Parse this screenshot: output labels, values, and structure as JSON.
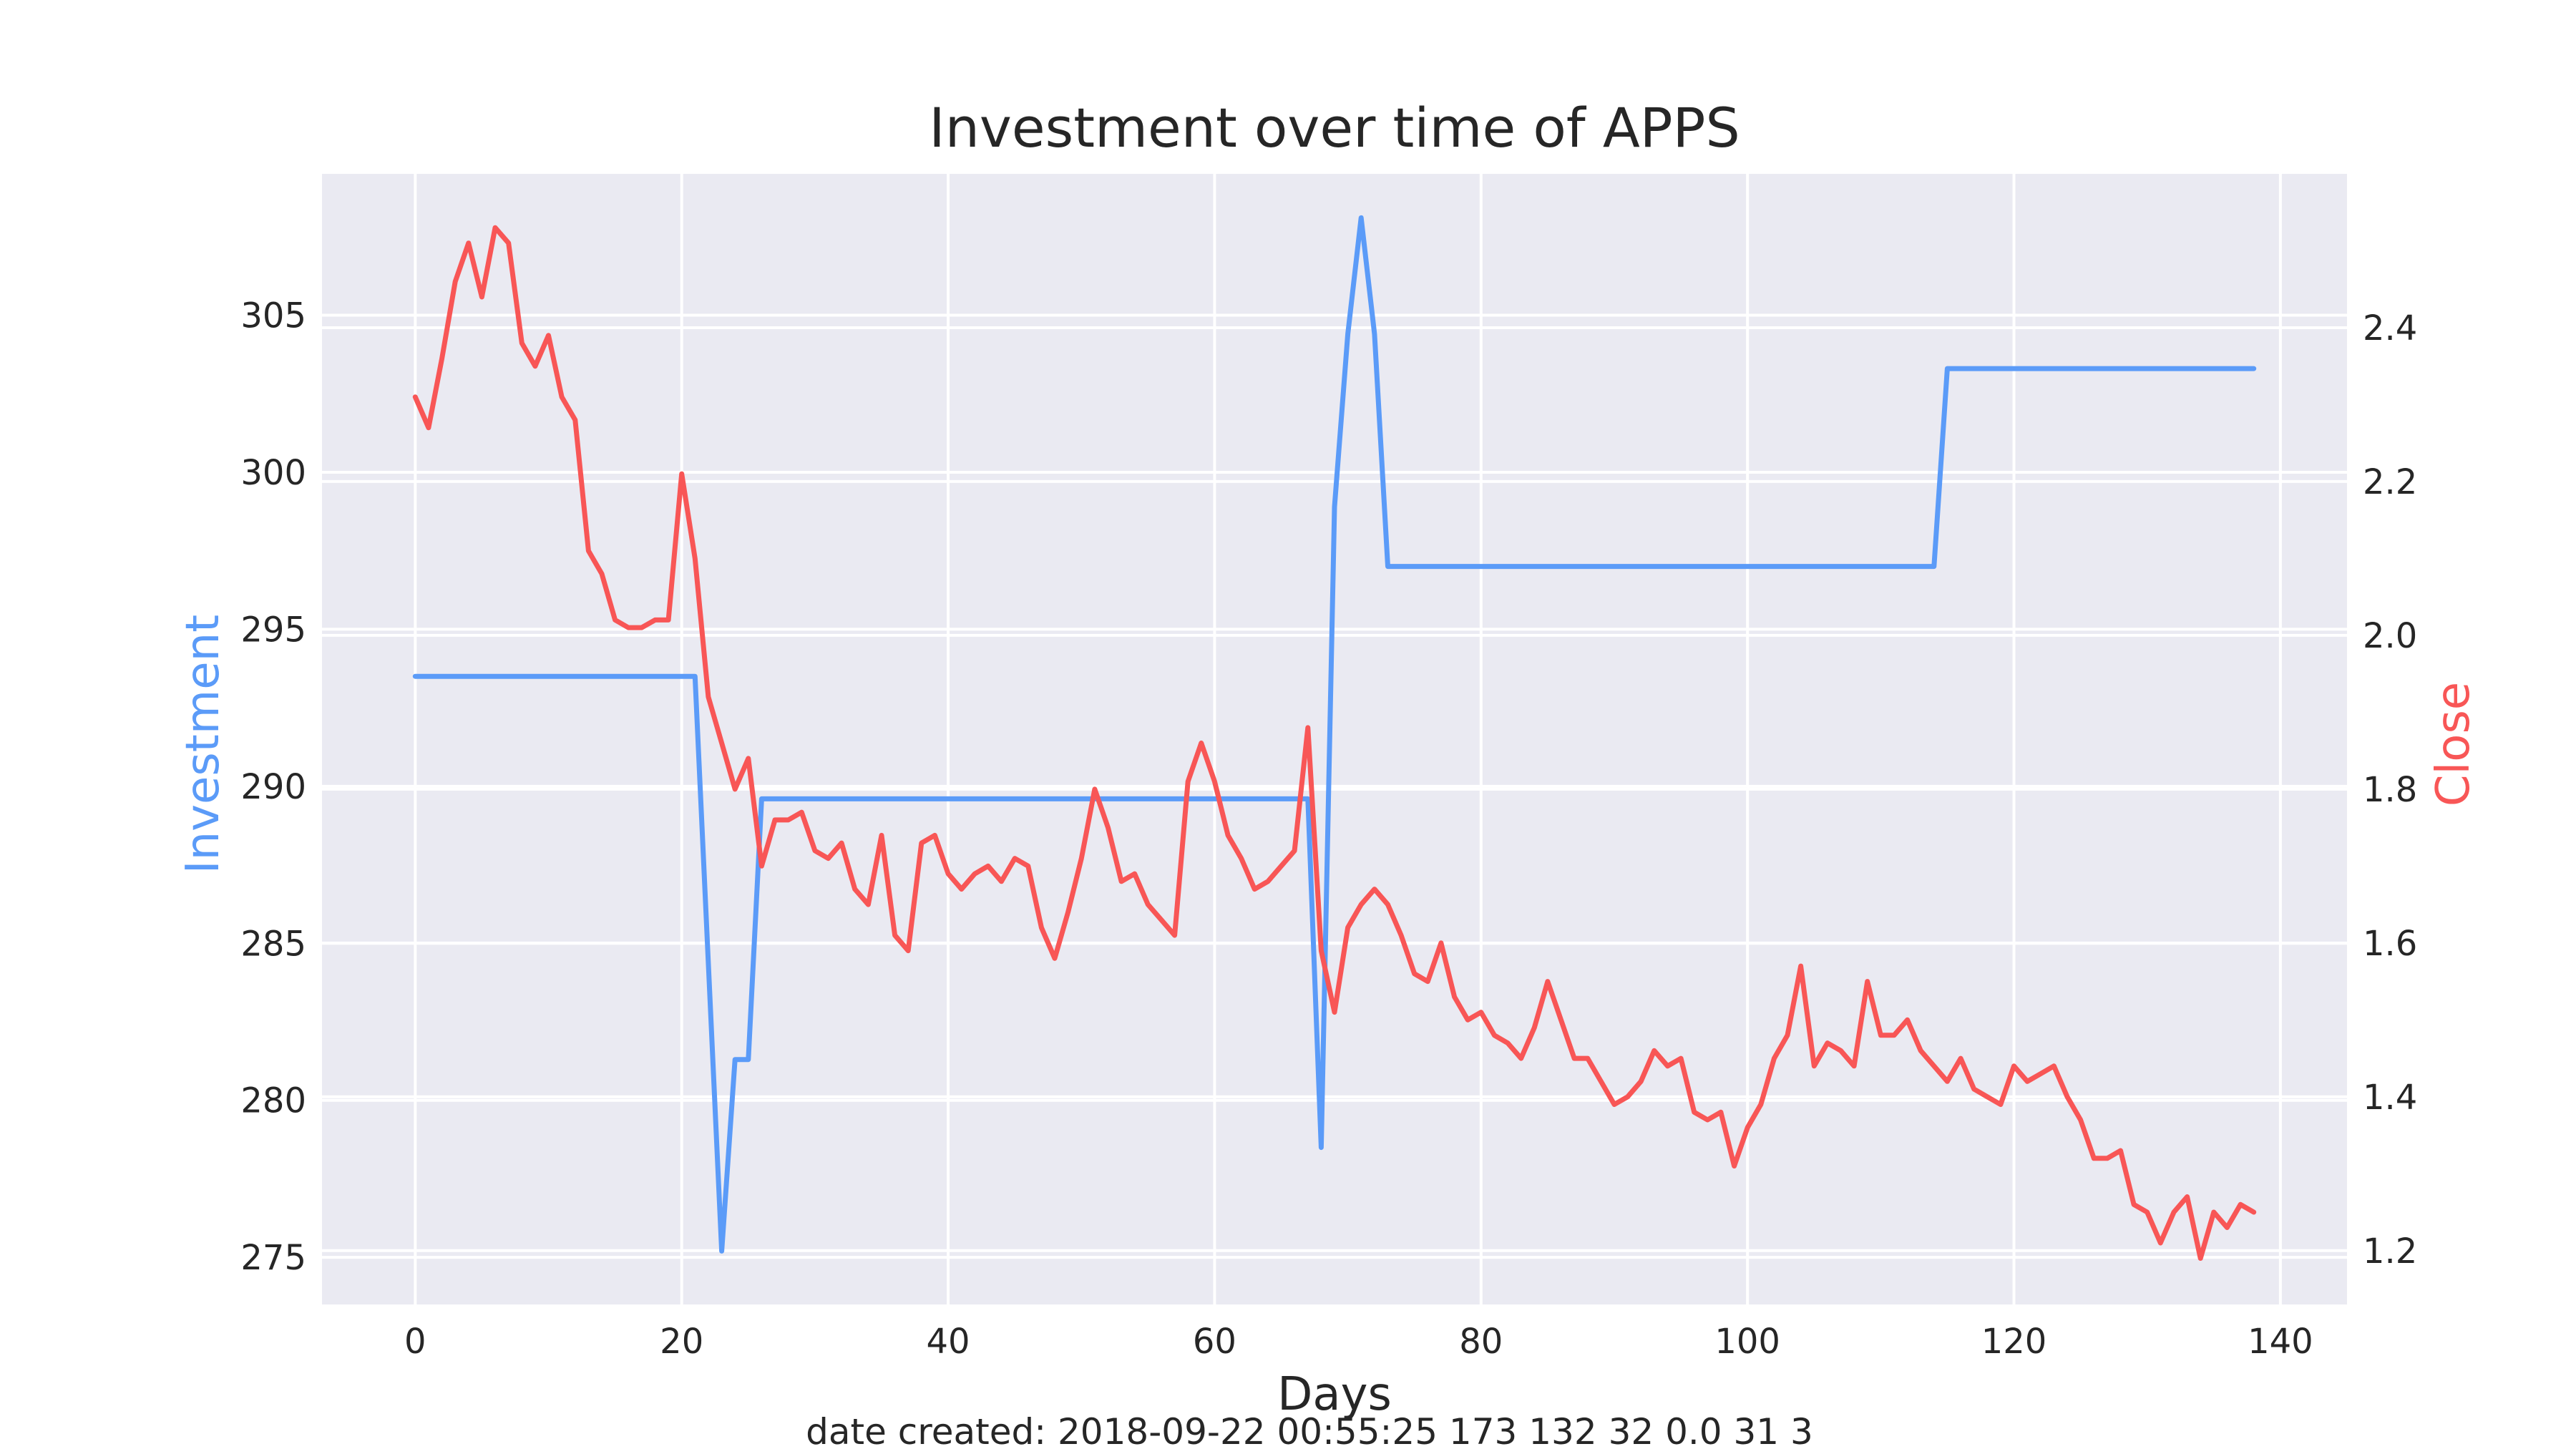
{
  "footer": "date created: 2018-09-22 00:55:25 173 132 32 0.0 31 3",
  "chart_data": {
    "type": "line",
    "title": "Investment over time of APPS",
    "xlabel": "Days",
    "ylabel_left": "Investment",
    "ylabel_right": "Close",
    "xlim": [
      -7,
      145
    ],
    "ylim_left": [
      273.5,
      309.5
    ],
    "ylim_right": [
      1.13,
      2.6
    ],
    "x_ticks": [
      0,
      20,
      40,
      60,
      80,
      100,
      120,
      140
    ],
    "y_ticks_left": [
      275,
      280,
      285,
      290,
      295,
      300,
      305
    ],
    "y_ticks_right": [
      1.2,
      1.4,
      1.6,
      1.8,
      2.0,
      2.2,
      2.4
    ],
    "y_tick_labels_right": [
      "1.2",
      "1.4",
      "1.6",
      "1.8",
      "2.0",
      "2.2",
      "2.4"
    ],
    "grid": true,
    "colors": {
      "investment": "#5b9bf8",
      "close": "#f85656",
      "background": "#eaeaf2"
    },
    "series": [
      {
        "name": "Investment",
        "axis": "left",
        "color": "#5b9bf8",
        "x": [
          0,
          21,
          23,
          24,
          25,
          26,
          67,
          68,
          69,
          70,
          71,
          72,
          73,
          114,
          115,
          138
        ],
        "y": [
          293.5,
          293.5,
          275.2,
          281.3,
          281.3,
          289.6,
          289.6,
          278.5,
          298.9,
          304.4,
          308.1,
          304.4,
          297.0,
          297.0,
          303.3,
          303.3
        ]
      },
      {
        "name": "Close",
        "axis": "right",
        "color": "#f85656",
        "x": [
          0,
          1,
          2,
          3,
          4,
          5,
          6,
          7,
          8,
          9,
          10,
          11,
          12,
          13,
          14,
          15,
          16,
          17,
          18,
          19,
          20,
          21,
          22,
          23,
          24,
          25,
          26,
          27,
          28,
          29,
          30,
          31,
          32,
          33,
          34,
          35,
          36,
          37,
          38,
          39,
          40,
          41,
          42,
          43,
          44,
          45,
          46,
          47,
          48,
          49,
          50,
          51,
          52,
          53,
          54,
          55,
          56,
          57,
          58,
          59,
          60,
          61,
          62,
          63,
          64,
          65,
          66,
          67,
          68,
          69,
          70,
          71,
          72,
          73,
          74,
          75,
          76,
          77,
          78,
          79,
          80,
          81,
          82,
          83,
          84,
          85,
          86,
          87,
          88,
          89,
          90,
          91,
          92,
          93,
          94,
          95,
          96,
          97,
          98,
          99,
          100,
          101,
          102,
          103,
          104,
          105,
          106,
          107,
          108,
          109,
          110,
          111,
          112,
          113,
          114,
          115,
          116,
          117,
          118,
          119,
          120,
          121,
          122,
          123,
          124,
          125,
          126,
          127,
          128,
          129,
          130,
          131,
          132,
          133,
          134,
          135,
          136,
          137,
          138
        ],
        "y": [
          2.31,
          2.27,
          2.36,
          2.46,
          2.51,
          2.44,
          2.53,
          2.51,
          2.38,
          2.35,
          2.39,
          2.31,
          2.28,
          2.11,
          2.08,
          2.02,
          2.01,
          2.01,
          2.02,
          2.02,
          2.21,
          2.1,
          1.92,
          1.86,
          1.8,
          1.84,
          1.7,
          1.76,
          1.76,
          1.77,
          1.72,
          1.71,
          1.73,
          1.67,
          1.65,
          1.74,
          1.61,
          1.59,
          1.73,
          1.74,
          1.69,
          1.67,
          1.69,
          1.7,
          1.68,
          1.71,
          1.7,
          1.62,
          1.58,
          1.64,
          1.71,
          1.8,
          1.75,
          1.68,
          1.69,
          1.65,
          1.63,
          1.61,
          1.81,
          1.86,
          1.81,
          1.74,
          1.71,
          1.67,
          1.68,
          1.7,
          1.72,
          1.88,
          1.59,
          1.51,
          1.62,
          1.65,
          1.67,
          1.65,
          1.61,
          1.56,
          1.55,
          1.6,
          1.53,
          1.5,
          1.51,
          1.48,
          1.47,
          1.45,
          1.49,
          1.55,
          1.5,
          1.45,
          1.45,
          1.42,
          1.39,
          1.4,
          1.42,
          1.46,
          1.44,
          1.45,
          1.38,
          1.37,
          1.38,
          1.31,
          1.36,
          1.39,
          1.45,
          1.48,
          1.57,
          1.44,
          1.47,
          1.46,
          1.44,
          1.55,
          1.48,
          1.48,
          1.5,
          1.46,
          1.44,
          1.42,
          1.45,
          1.41,
          1.4,
          1.39,
          1.44,
          1.42,
          1.43,
          1.44,
          1.4,
          1.37,
          1.32,
          1.32,
          1.33,
          1.26,
          1.25,
          1.21,
          1.25,
          1.27,
          1.19,
          1.25,
          1.23,
          1.26,
          1.25
        ]
      }
    ]
  }
}
